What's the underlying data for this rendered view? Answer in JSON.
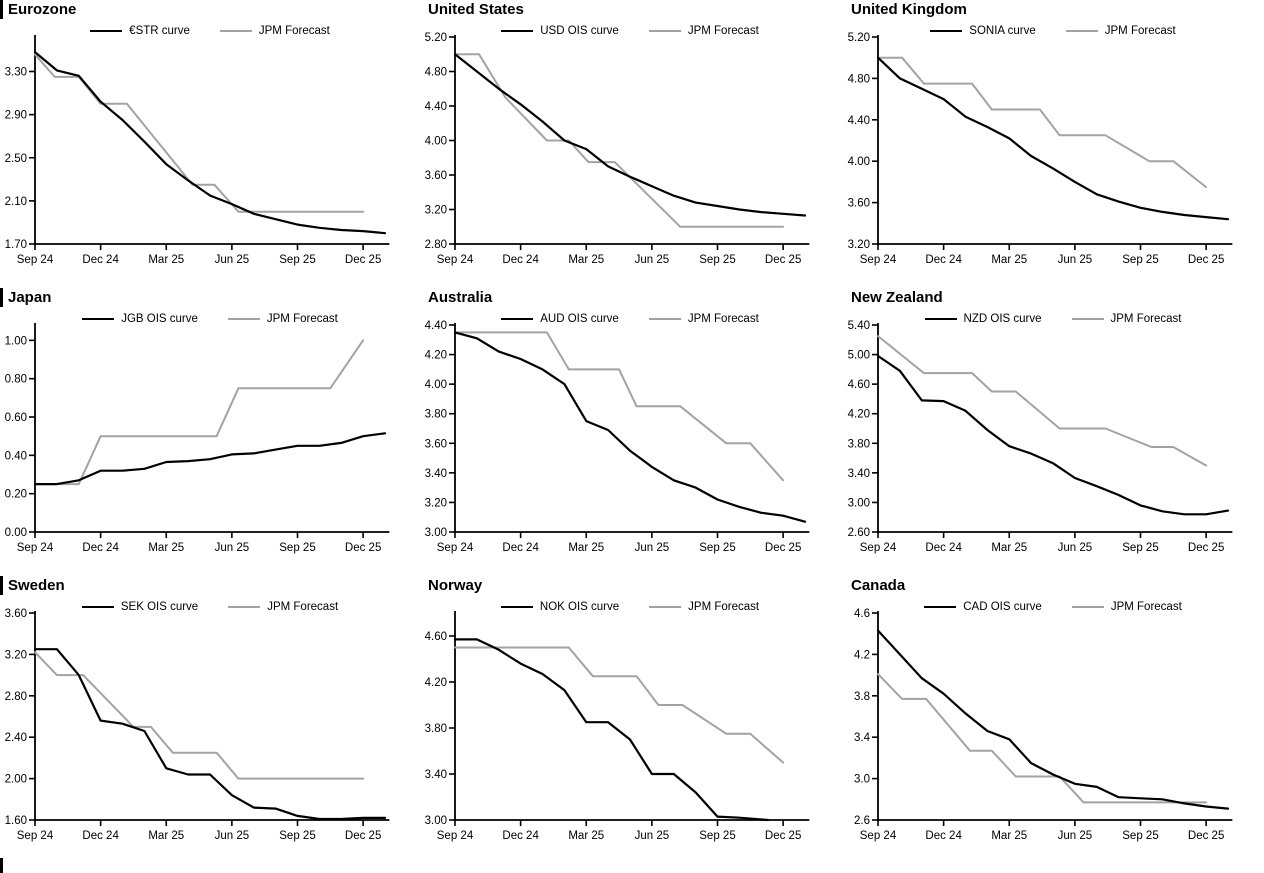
{
  "page": {
    "background": "#ffffff"
  },
  "colors": {
    "curve": "#000000",
    "forecast": "#a3a3a3",
    "axis": "#000000",
    "text": "#000000"
  },
  "x_tick_months": [
    0,
    3,
    6,
    9,
    12,
    15
  ],
  "x_tick_labels": [
    "Sep 24",
    "Dec 24",
    "Mar 25",
    "Jun 25",
    "Sep 25",
    "Dec 25"
  ],
  "chart_data": [
    {
      "type": "line",
      "title": "Eurozone",
      "xlim": [
        0,
        16
      ],
      "ylim": [
        1.7,
        3.62
      ],
      "y_tick_values": [
        3.3,
        2.9,
        2.5,
        2.1,
        1.7
      ],
      "y_tick_labels": [
        "3.30",
        "2.90",
        "2.50",
        "2.10",
        "1.70"
      ],
      "legend_position": "top-center",
      "grid": false,
      "series": [
        {
          "name": "€STR curve",
          "role": "curve",
          "x": [
            0,
            1,
            2,
            3,
            4,
            5,
            6,
            7,
            8,
            9,
            10,
            11,
            12,
            13,
            14,
            15,
            16
          ],
          "values": [
            3.48,
            3.31,
            3.26,
            3.02,
            2.85,
            2.65,
            2.44,
            2.29,
            2.15,
            2.07,
            1.98,
            1.93,
            1.88,
            1.85,
            1.83,
            1.82,
            1.8
          ]
        },
        {
          "name": "JPM Forecast",
          "role": "forecast",
          "x": [
            0,
            0.9,
            2.0,
            3.0,
            4.2,
            7.2,
            8.2,
            9.3,
            15
          ],
          "values": [
            3.46,
            3.25,
            3.25,
            3.0,
            3.0,
            2.25,
            2.25,
            2.0,
            2.0
          ]
        }
      ]
    },
    {
      "type": "line",
      "title": "United States",
      "xlim": [
        0,
        16
      ],
      "ylim": [
        2.8,
        5.2
      ],
      "y_tick_values": [
        5.2,
        4.8,
        4.4,
        4.0,
        3.6,
        3.2,
        2.8
      ],
      "y_tick_labels": [
        "5.20",
        "4.80",
        "4.40",
        "4.00",
        "3.60",
        "3.20",
        "2.80"
      ],
      "legend_position": "top-center",
      "grid": false,
      "series": [
        {
          "name": "USD OIS curve",
          "role": "curve",
          "x": [
            0,
            1,
            2,
            3,
            4,
            5,
            6,
            7,
            8,
            9,
            10,
            11,
            12,
            13,
            14,
            15,
            16
          ],
          "values": [
            5.0,
            4.8,
            4.6,
            4.42,
            4.22,
            4.0,
            3.9,
            3.7,
            3.58,
            3.47,
            3.36,
            3.28,
            3.24,
            3.2,
            3.17,
            3.15,
            3.13
          ]
        },
        {
          "name": "JPM Forecast",
          "role": "forecast",
          "x": [
            0,
            1.1,
            2.3,
            4.2,
            5.2,
            6.1,
            7.3,
            10.3,
            15
          ],
          "values": [
            5.0,
            5.0,
            4.5,
            4.0,
            4.0,
            3.75,
            3.75,
            3.0,
            3.0
          ]
        }
      ]
    },
    {
      "type": "line",
      "title": "United Kingdom",
      "xlim": [
        0,
        16
      ],
      "ylim": [
        3.2,
        5.2
      ],
      "y_tick_values": [
        5.2,
        4.8,
        4.4,
        4.0,
        3.6,
        3.2
      ],
      "y_tick_labels": [
        "5.20",
        "4.80",
        "4.40",
        "4.00",
        "3.60",
        "3.20"
      ],
      "legend_position": "top-center",
      "grid": false,
      "series": [
        {
          "name": "SONIA curve",
          "role": "curve",
          "x": [
            0,
            1,
            2,
            3,
            4,
            5,
            6,
            7,
            8,
            9,
            10,
            11,
            12,
            13,
            14,
            15,
            16
          ],
          "values": [
            5.0,
            4.8,
            4.7,
            4.6,
            4.43,
            4.33,
            4.22,
            4.05,
            3.93,
            3.8,
            3.68,
            3.61,
            3.55,
            3.51,
            3.48,
            3.46,
            3.44
          ]
        },
        {
          "name": "JPM Forecast",
          "role": "forecast",
          "x": [
            0,
            1.1,
            2.1,
            4.3,
            5.2,
            7.4,
            8.3,
            10.4,
            12.4,
            13.5,
            15
          ],
          "values": [
            5.0,
            5.0,
            4.75,
            4.75,
            4.5,
            4.5,
            4.25,
            4.25,
            4.0,
            4.0,
            3.75
          ]
        }
      ]
    },
    {
      "type": "line",
      "title": "Japan",
      "xlim": [
        0,
        16
      ],
      "ylim": [
        0.0,
        1.08
      ],
      "y_tick_values": [
        1.0,
        0.8,
        0.6,
        0.4,
        0.2,
        0.0
      ],
      "y_tick_labels": [
        "1.00",
        "0.80",
        "0.60",
        "0.40",
        "0.20",
        "0.00"
      ],
      "legend_position": "top-center",
      "grid": false,
      "series": [
        {
          "name": "JGB OIS curve",
          "role": "curve",
          "x": [
            0,
            1,
            2,
            3,
            4,
            5,
            6,
            7,
            8,
            9,
            10,
            11,
            12,
            13,
            14,
            15,
            16
          ],
          "values": [
            0.25,
            0.25,
            0.27,
            0.32,
            0.32,
            0.33,
            0.365,
            0.37,
            0.38,
            0.405,
            0.41,
            0.43,
            0.45,
            0.45,
            0.465,
            0.5,
            0.515
          ]
        },
        {
          "name": "JPM Forecast",
          "role": "forecast",
          "x": [
            0,
            2.0,
            3.0,
            8.3,
            9.3,
            13.5,
            15
          ],
          "values": [
            0.25,
            0.25,
            0.5,
            0.5,
            0.75,
            0.75,
            1.0
          ]
        }
      ]
    },
    {
      "type": "line",
      "title": "Australia",
      "xlim": [
        0,
        16
      ],
      "ylim": [
        3.0,
        4.4
      ],
      "y_tick_values": [
        4.4,
        4.2,
        4.0,
        3.8,
        3.6,
        3.4,
        3.2,
        3.0
      ],
      "y_tick_labels": [
        "4.40",
        "4.20",
        "4.00",
        "3.80",
        "3.60",
        "3.40",
        "3.20",
        "3.00"
      ],
      "legend_position": "top-center",
      "grid": false,
      "series": [
        {
          "name": "AUD OIS curve",
          "role": "curve",
          "x": [
            0,
            1,
            2,
            3,
            4,
            5,
            6,
            7,
            8,
            9,
            10,
            11,
            12,
            13,
            14,
            15,
            16
          ],
          "values": [
            4.35,
            4.31,
            4.22,
            4.17,
            4.1,
            4.0,
            3.75,
            3.69,
            3.55,
            3.44,
            3.35,
            3.3,
            3.22,
            3.17,
            3.13,
            3.11,
            3.07
          ]
        },
        {
          "name": "JPM Forecast",
          "role": "forecast",
          "x": [
            0,
            4.2,
            5.2,
            7.5,
            8.3,
            10.3,
            12.4,
            13.5,
            15
          ],
          "values": [
            4.35,
            4.35,
            4.1,
            4.1,
            3.85,
            3.85,
            3.6,
            3.6,
            3.35
          ]
        }
      ]
    },
    {
      "type": "line",
      "title": "New Zealand",
      "xlim": [
        0,
        16
      ],
      "ylim": [
        2.6,
        5.4
      ],
      "y_tick_values": [
        5.4,
        5.0,
        4.6,
        4.2,
        3.8,
        3.4,
        3.0,
        2.6
      ],
      "y_tick_labels": [
        "5.40",
        "5.00",
        "4.60",
        "4.20",
        "3.80",
        "3.40",
        "3.00",
        "2.60"
      ],
      "legend_position": "top-center",
      "grid": false,
      "series": [
        {
          "name": "NZD OIS curve",
          "role": "curve",
          "x": [
            0,
            1,
            2,
            3,
            4,
            5,
            6,
            7,
            8,
            9,
            10,
            11,
            12,
            13,
            14,
            15,
            16
          ],
          "values": [
            4.98,
            4.78,
            4.38,
            4.37,
            4.24,
            3.98,
            3.76,
            3.66,
            3.53,
            3.33,
            3.22,
            3.1,
            2.96,
            2.88,
            2.84,
            2.84,
            2.89
          ]
        },
        {
          "name": "JPM Forecast",
          "role": "forecast",
          "x": [
            0,
            2.1,
            4.3,
            5.2,
            6.3,
            8.3,
            10.4,
            12.5,
            13.5,
            15
          ],
          "values": [
            5.25,
            4.75,
            4.75,
            4.5,
            4.5,
            4.0,
            4.0,
            3.75,
            3.75,
            3.5
          ]
        }
      ]
    },
    {
      "type": "line",
      "title": "Sweden",
      "xlim": [
        0,
        16
      ],
      "ylim": [
        1.6,
        3.6
      ],
      "y_tick_values": [
        3.6,
        3.2,
        2.8,
        2.4,
        2.0,
        1.6
      ],
      "y_tick_labels": [
        "3.60",
        "3.20",
        "2.80",
        "2.40",
        "2.00",
        "1.60"
      ],
      "legend_position": "top-center",
      "grid": false,
      "series": [
        {
          "name": "SEK OIS curve",
          "role": "curve",
          "x": [
            0,
            1,
            2,
            3,
            4,
            5,
            6,
            7,
            8,
            9,
            10,
            11,
            12,
            13,
            14,
            15,
            16
          ],
          "values": [
            3.25,
            3.25,
            3.0,
            2.56,
            2.53,
            2.46,
            2.1,
            2.04,
            2.04,
            1.84,
            1.72,
            1.71,
            1.64,
            1.61,
            1.61,
            1.62,
            1.62
          ]
        },
        {
          "name": "JPM Forecast",
          "role": "forecast",
          "x": [
            0,
            1.0,
            2.2,
            4.5,
            5.3,
            6.3,
            8.3,
            9.3,
            15
          ],
          "values": [
            3.22,
            3.0,
            3.0,
            2.5,
            2.5,
            2.25,
            2.25,
            2.0,
            2.0
          ]
        }
      ]
    },
    {
      "type": "line",
      "title": "Norway",
      "xlim": [
        0,
        16
      ],
      "ylim": [
        3.0,
        4.8
      ],
      "y_tick_values": [
        4.6,
        4.2,
        3.8,
        3.4,
        3.0
      ],
      "y_tick_labels": [
        "4.60",
        "4.20",
        "3.80",
        "3.40",
        "3.00"
      ],
      "legend_position": "top-center",
      "grid": false,
      "series": [
        {
          "name": "NOK OIS curve",
          "role": "curve",
          "x": [
            0,
            1,
            2,
            3,
            4,
            5,
            6,
            7,
            8,
            9,
            10,
            11,
            12,
            13,
            14.3
          ],
          "values": [
            4.57,
            4.57,
            4.48,
            4.36,
            4.27,
            4.13,
            3.85,
            3.85,
            3.7,
            3.4,
            3.4,
            3.24,
            3.03,
            3.02,
            3.0
          ]
        },
        {
          "name": "JPM Forecast",
          "role": "forecast",
          "x": [
            0,
            5.2,
            6.3,
            8.3,
            9.3,
            10.4,
            12.4,
            13.5,
            15
          ],
          "values": [
            4.5,
            4.5,
            4.25,
            4.25,
            4.0,
            4.0,
            3.75,
            3.75,
            3.5
          ]
        }
      ]
    },
    {
      "type": "line",
      "title": "Canada",
      "xlim": [
        0,
        16
      ],
      "ylim": [
        2.6,
        4.6
      ],
      "y_tick_values": [
        4.6,
        4.2,
        3.8,
        3.4,
        3.0,
        2.6
      ],
      "y_tick_labels": [
        "4.6",
        "4.2",
        "3.8",
        "3.4",
        "3.0",
        "2.6"
      ],
      "legend_position": "top-center",
      "grid": false,
      "series": [
        {
          "name": "CAD OIS curve",
          "role": "curve",
          "x": [
            0,
            1,
            2,
            3,
            4,
            5,
            6,
            7,
            8,
            9,
            10,
            11,
            12,
            13,
            14,
            15,
            16
          ],
          "values": [
            4.43,
            4.2,
            3.97,
            3.82,
            3.63,
            3.46,
            3.38,
            3.15,
            3.04,
            2.95,
            2.92,
            2.82,
            2.81,
            2.8,
            2.76,
            2.73,
            2.71
          ]
        },
        {
          "name": "JPM Forecast",
          "role": "forecast",
          "x": [
            0,
            1.1,
            2.2,
            4.2,
            5.2,
            6.3,
            8.3,
            9.4,
            15
          ],
          "values": [
            4.01,
            3.77,
            3.77,
            3.27,
            3.27,
            3.02,
            3.02,
            2.77,
            2.77
          ]
        }
      ]
    }
  ]
}
